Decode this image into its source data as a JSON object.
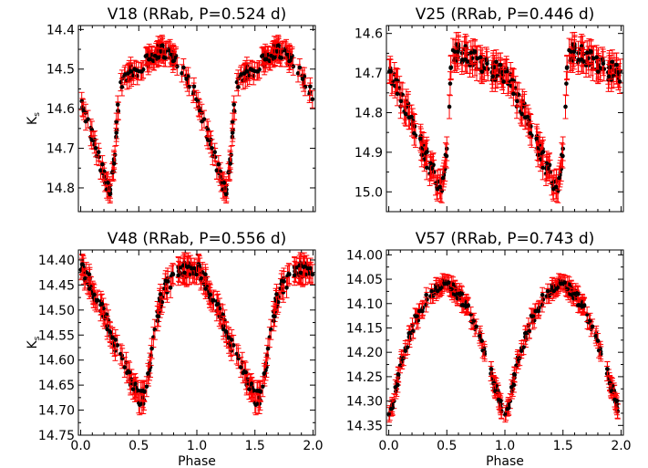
{
  "chart_data": [
    {
      "type": "scatter",
      "title": "V18 (RRab, P=0.524 d)",
      "xlabel": "",
      "ylabel": "Ks",
      "xlim": [
        -0.02,
        2.02
      ],
      "ylim": [
        14.86,
        14.39
      ],
      "y_inverted": true,
      "grid": false,
      "xticks": [
        "0.0",
        "0.5",
        "1.0",
        "1.5",
        "2.0"
      ],
      "xtick_labels_visible": false,
      "yticks": [
        "14.4",
        "14.5",
        "14.6",
        "14.7",
        "14.8"
      ],
      "series": [
        {
          "marker_color": "#000000",
          "errorbar_color": "#ff0000",
          "phase_curve": [
            [
              0.0,
              14.58
            ],
            [
              0.05,
              14.62
            ],
            [
              0.1,
              14.67
            ],
            [
              0.15,
              14.72
            ],
            [
              0.2,
              14.77
            ],
            [
              0.25,
              14.81
            ],
            [
              0.28,
              14.76
            ],
            [
              0.32,
              14.6
            ],
            [
              0.36,
              14.52
            ],
            [
              0.42,
              14.51
            ],
            [
              0.5,
              14.5
            ],
            [
              0.6,
              14.47
            ],
            [
              0.7,
              14.45
            ],
            [
              0.8,
              14.47
            ],
            [
              0.9,
              14.51
            ],
            [
              0.95,
              14.54
            ],
            [
              1.0,
              14.58
            ]
          ],
          "error": 0.022
        }
      ]
    },
    {
      "type": "scatter",
      "title": "V25 (RRab, P=0.446 d)",
      "xlabel": "",
      "ylabel": "",
      "xlim": [
        -0.02,
        2.02
      ],
      "ylim": [
        15.05,
        14.58
      ],
      "y_inverted": true,
      "grid": false,
      "xticks": [
        "0.0",
        "0.5",
        "1.0",
        "1.5",
        "2.0"
      ],
      "xtick_labels_visible": false,
      "yticks": [
        "14.6",
        "14.7",
        "14.8",
        "14.9",
        "15.0"
      ],
      "series": [
        {
          "marker_color": "#000000",
          "errorbar_color": "#ff0000",
          "phase_curve": [
            [
              0.0,
              14.7
            ],
            [
              0.05,
              14.72
            ],
            [
              0.1,
              14.76
            ],
            [
              0.2,
              14.82
            ],
            [
              0.3,
              14.9
            ],
            [
              0.4,
              14.96
            ],
            [
              0.45,
              15.0
            ],
            [
              0.47,
              14.96
            ],
            [
              0.5,
              14.88
            ],
            [
              0.53,
              14.72
            ],
            [
              0.56,
              14.65
            ],
            [
              0.65,
              14.65
            ],
            [
              0.75,
              14.67
            ],
            [
              0.85,
              14.69
            ],
            [
              1.0,
              14.7
            ]
          ],
          "error": 0.03
        }
      ]
    },
    {
      "type": "scatter",
      "title": "V48 (RRab, P=0.556 d)",
      "xlabel": "Phase",
      "ylabel": "Ks",
      "xlim": [
        -0.02,
        2.02
      ],
      "ylim": [
        14.75,
        14.38
      ],
      "y_inverted": true,
      "grid": false,
      "xticks": [
        "0.0",
        "0.5",
        "1.0",
        "1.5",
        "2.0"
      ],
      "yticks": [
        "14.40",
        "14.45",
        "14.50",
        "14.55",
        "14.60",
        "14.65",
        "14.70",
        "14.75"
      ],
      "series": [
        {
          "marker_color": "#000000",
          "errorbar_color": "#ff0000",
          "phase_curve": [
            [
              0.0,
              14.42
            ],
            [
              0.05,
              14.43
            ],
            [
              0.1,
              14.46
            ],
            [
              0.2,
              14.51
            ],
            [
              0.3,
              14.57
            ],
            [
              0.4,
              14.62
            ],
            [
              0.5,
              14.68
            ],
            [
              0.55,
              14.67
            ],
            [
              0.6,
              14.6
            ],
            [
              0.65,
              14.52
            ],
            [
              0.7,
              14.47
            ],
            [
              0.8,
              14.43
            ],
            [
              0.9,
              14.42
            ],
            [
              1.0,
              14.42
            ]
          ],
          "error": 0.02
        }
      ]
    },
    {
      "type": "scatter",
      "title": "V57 (RRab, P=0.743 d)",
      "xlabel": "Phase",
      "ylabel": "",
      "xlim": [
        -0.02,
        2.02
      ],
      "ylim": [
        14.37,
        13.99
      ],
      "y_inverted": true,
      "grid": false,
      "xticks": [
        "0.0",
        "0.5",
        "1.0",
        "1.5",
        "2.0"
      ],
      "yticks": [
        "14.00",
        "14.05",
        "14.10",
        "14.15",
        "14.20",
        "14.25",
        "14.30",
        "14.35"
      ],
      "series": [
        {
          "marker_color": "#000000",
          "errorbar_color": "#ff0000",
          "phase_curve": [
            [
              0.0,
              14.33
            ],
            [
              0.05,
              14.29
            ],
            [
              0.1,
              14.23
            ],
            [
              0.2,
              14.15
            ],
            [
              0.3,
              14.1
            ],
            [
              0.4,
              14.07
            ],
            [
              0.5,
              14.06
            ],
            [
              0.6,
              14.08
            ],
            [
              0.7,
              14.12
            ],
            [
              0.8,
              14.18
            ],
            [
              0.9,
              14.26
            ],
            [
              0.97,
              14.31
            ],
            [
              1.0,
              14.33
            ]
          ],
          "error": 0.015
        }
      ]
    }
  ]
}
